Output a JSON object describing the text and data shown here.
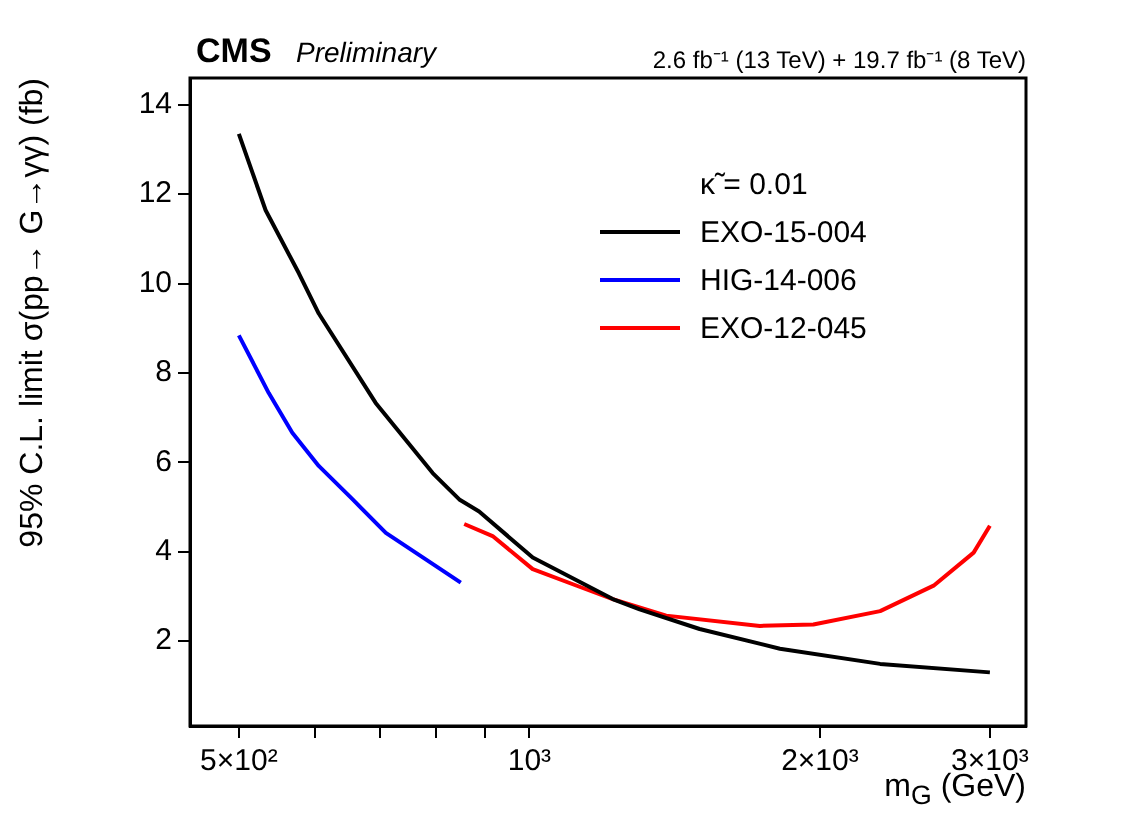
{
  "chart_data": {
    "type": "line",
    "title": "CMS",
    "subtitle": "Preliminary",
    "xlabel": "m$_{G}$ (GeV)",
    "ylabel": "95% C.L. limit σ(pp→ G→γγ) (fb)",
    "legend_title": "κ̃ = 0.01",
    "annotations": [
      "2.6 fb⁻¹ (13 TeV) + 19.7 fb⁻¹ (8 TeV)"
    ],
    "log": "x",
    "grid": false,
    "legend": "top right",
    "marker": "none",
    "line_style": "solid",
    "xlim": [
      445,
      3270
    ],
    "xticks": [
      {
        "value": 500,
        "label": "5×10²"
      },
      {
        "value": 600,
        "label": null
      },
      {
        "value": 700,
        "label": null
      },
      {
        "value": 800,
        "label": null
      },
      {
        "value": 900,
        "label": null
      },
      {
        "value": 1000,
        "label": "10³"
      },
      {
        "value": 2000,
        "label": "2×10³"
      },
      {
        "value": 3000,
        "label": "3×10³"
      }
    ],
    "ylim": [
      0.1,
      14.6
    ],
    "yticks": [
      2,
      4,
      6,
      8,
      10,
      12,
      14
    ],
    "series": [
      {
        "name": "EXO-15-004",
        "color": "#000000",
        "x": [
          500,
          533,
          577,
          605,
          693,
          794,
          846,
          887,
          1008,
          1220,
          1301,
          1501,
          1818,
          2309,
          3000
        ],
        "values": [
          13.35,
          11.64,
          10.23,
          9.33,
          7.33,
          5.76,
          5.17,
          4.9,
          3.87,
          2.94,
          2.71,
          2.27,
          1.83,
          1.49,
          1.3
        ]
      },
      {
        "name": "HIG-14-006",
        "color": "#0000ff",
        "x": [
          500,
          537,
          568,
          605,
          656,
          710,
          781,
          849
        ],
        "values": [
          8.84,
          7.55,
          6.66,
          5.92,
          5.17,
          4.42,
          3.83,
          3.31
        ]
      },
      {
        "name": "EXO-12-045",
        "color": "#ff0000",
        "x": [
          856,
          916,
          1008,
          1145,
          1220,
          1386,
          1733,
          1969,
          2309,
          2623,
          2886,
          3000
        ],
        "values": [
          4.62,
          4.35,
          3.61,
          3.16,
          2.94,
          2.57,
          2.34,
          2.37,
          2.67,
          3.24,
          3.98,
          4.58
        ]
      }
    ]
  }
}
